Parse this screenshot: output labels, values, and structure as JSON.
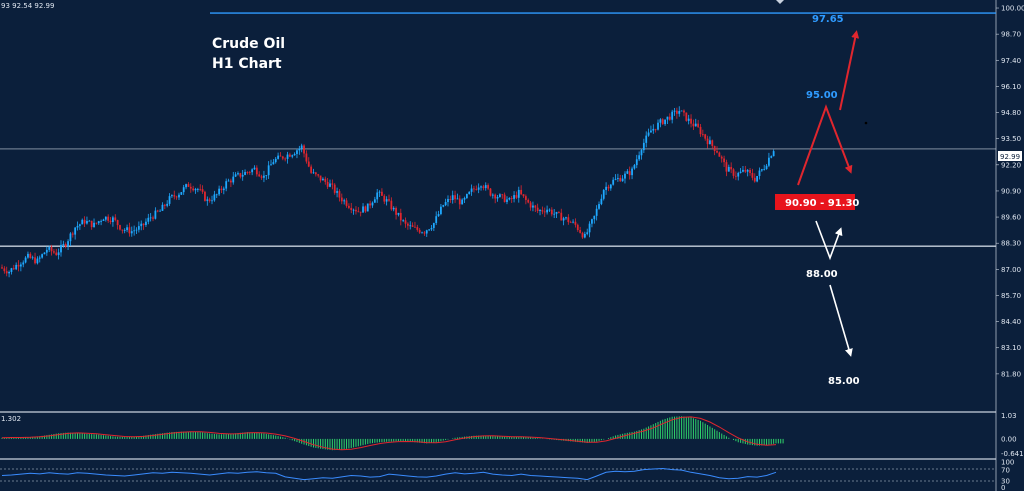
{
  "header": {
    "ohlc_readout": "93 92.54 92.99"
  },
  "title": {
    "line1": "Crude Oil",
    "line2": "H1 Chart"
  },
  "colors": {
    "background": "#0b1f3b",
    "bull": "#1fa9ff",
    "bear": "#e0262e",
    "arrow_red": "#e0262e",
    "arrow_white": "#ffffff",
    "level_blue": "#2f9bff",
    "macd_hist": "#2fd16a",
    "macd_signal": "#e0262e",
    "rsi_line": "#3a8cff",
    "grid_line": "#c9d2de"
  },
  "chart_data": [
    {
      "type": "candlestick",
      "name": "price",
      "ylim": [
        80.5,
        100.2
      ],
      "y_ticks": [
        "100.00",
        "98.70",
        "97.40",
        "96.10",
        "94.80",
        "93.50",
        "92.20",
        "90.90",
        "89.60",
        "88.30",
        "87.00",
        "85.70",
        "84.40",
        "83.10",
        "81.80"
      ],
      "current_price": "92.99",
      "horizontal_lines": [
        92.99,
        88.15,
        99.75
      ],
      "path": [
        87.1,
        86.9,
        87.3,
        87.6,
        87.4,
        88.0,
        87.8,
        88.3,
        89.1,
        89.4,
        89.2,
        89.6,
        89.5,
        89.0,
        88.9,
        89.1,
        89.6,
        89.9,
        90.5,
        90.8,
        91.2,
        91.0,
        90.4,
        90.7,
        91.3,
        91.6,
        91.8,
        92.0,
        91.6,
        92.4,
        92.6,
        92.8,
        93.1,
        91.8,
        91.5,
        91.2,
        90.6,
        90.2,
        89.9,
        90.1,
        90.8,
        90.4,
        89.8,
        89.2,
        89.0,
        88.9,
        89.3,
        90.2,
        90.6,
        90.3,
        90.9,
        91.3,
        90.8,
        90.6,
        90.4,
        90.8,
        90.3,
        89.9,
        90.0,
        89.7,
        89.5,
        89.2,
        88.6,
        89.6,
        91.0,
        91.4,
        91.6,
        91.9,
        93.1,
        93.9,
        94.3,
        94.6,
        94.9,
        94.4,
        94.0,
        93.4,
        92.9,
        92.0,
        91.7,
        91.9,
        91.5,
        92.1,
        92.99
      ],
      "annotations": [
        {
          "label": "97.65",
          "color": "level_blue"
        },
        {
          "label": "95.00",
          "color": "level_blue"
        },
        {
          "label": "90.90 - 91.30",
          "color": "box_red"
        },
        {
          "label": "88.00",
          "color": "white"
        },
        {
          "label": "85.00",
          "color": "white"
        }
      ]
    },
    {
      "type": "bar",
      "name": "macd",
      "y_ticks": [
        "1.03",
        "0.00",
        "-0.641"
      ],
      "corner_label": "1.302",
      "ylim": [
        -0.8,
        1.1
      ],
      "values": [
        0.05,
        0.06,
        0.07,
        0.08,
        0.12,
        0.18,
        0.25,
        0.28,
        0.26,
        0.22,
        0.2,
        0.15,
        0.1,
        0.08,
        0.1,
        0.14,
        0.2,
        0.25,
        0.3,
        0.32,
        0.33,
        0.3,
        0.24,
        0.2,
        0.22,
        0.26,
        0.3,
        0.28,
        0.22,
        0.15,
        0.05,
        -0.1,
        -0.25,
        -0.38,
        -0.45,
        -0.5,
        -0.48,
        -0.4,
        -0.3,
        -0.2,
        -0.15,
        -0.12,
        -0.1,
        -0.12,
        -0.16,
        -0.2,
        -0.15,
        -0.05,
        0.05,
        0.1,
        0.14,
        0.15,
        0.12,
        0.1,
        0.08,
        0.1,
        0.06,
        0.02,
        -0.02,
        -0.06,
        -0.1,
        -0.14,
        -0.18,
        -0.12,
        0.0,
        0.15,
        0.25,
        0.32,
        0.45,
        0.65,
        0.85,
        0.98,
        1.0,
        0.95,
        0.8,
        0.55,
        0.3,
        0.05,
        -0.15,
        -0.25,
        -0.3,
        -0.28,
        -0.2
      ]
    },
    {
      "type": "line",
      "name": "rsi",
      "y_ticks": [
        "100",
        "70",
        "30",
        "0"
      ],
      "ylim": [
        0,
        100
      ],
      "values": [
        50,
        52,
        55,
        58,
        56,
        60,
        57,
        55,
        60,
        58,
        55,
        52,
        50,
        48,
        52,
        56,
        60,
        58,
        62,
        60,
        58,
        55,
        52,
        56,
        60,
        58,
        62,
        64,
        60,
        58,
        45,
        40,
        35,
        38,
        42,
        40,
        45,
        50,
        48,
        44,
        46,
        55,
        52,
        48,
        45,
        44,
        48,
        55,
        60,
        56,
        58,
        62,
        55,
        52,
        50,
        55,
        50,
        48,
        46,
        44,
        42,
        40,
        35,
        48,
        62,
        66,
        64,
        66,
        72,
        74,
        76,
        72,
        70,
        62,
        56,
        50,
        42,
        38,
        40,
        46,
        44,
        50,
        62
      ]
    }
  ]
}
